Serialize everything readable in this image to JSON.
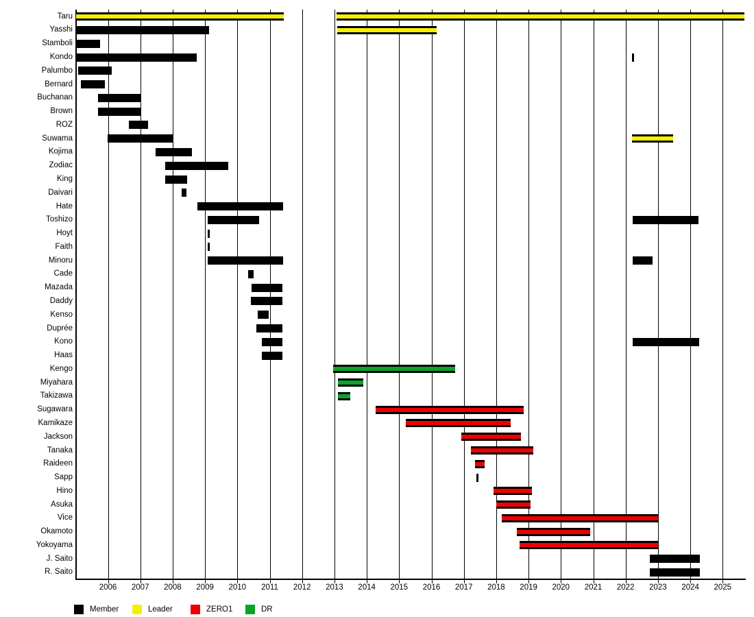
{
  "chart_data": {
    "type": "gantt-timeline",
    "title": "",
    "x_axis": {
      "start": 2005.02,
      "end": 2025.72,
      "tick_years": [
        2006,
        2007,
        2008,
        2009,
        2010,
        2011,
        2012,
        2013,
        2014,
        2015,
        2016,
        2017,
        2018,
        2019,
        2020,
        2021,
        2022,
        2023,
        2024,
        2025
      ],
      "grid": "on"
    },
    "legend": [
      {
        "label": "Member",
        "key": "Member",
        "color": "#000000"
      },
      {
        "label": "Leader",
        "key": "Leader",
        "color": "#f7ef00"
      },
      {
        "label": "ZERO1",
        "key": "ZERO1",
        "color": "#ee0000"
      },
      {
        "label": "DR",
        "key": "DR",
        "color": "#0ba428"
      }
    ],
    "rows": [
      {
        "label": "Taru",
        "bars": [
          {
            "start": 2005.02,
            "end": 2011.44,
            "type": "Leader"
          },
          {
            "start": 2013.07,
            "end": 2025.68,
            "type": "Leader"
          }
        ]
      },
      {
        "label": "Yasshi",
        "bars": [
          {
            "start": 2005.02,
            "end": 2009.12,
            "type": "Member"
          },
          {
            "start": 2013.09,
            "end": 2016.15,
            "type": "Leader"
          }
        ]
      },
      {
        "label": "Stamboli",
        "bars": [
          {
            "start": 2005.02,
            "end": 2005.76,
            "type": "Member"
          }
        ]
      },
      {
        "label": "Kondo",
        "bars": [
          {
            "start": 2005.02,
            "end": 2008.74,
            "type": "Member"
          },
          {
            "start": 2022.2,
            "end": 2022.2,
            "type": "Member"
          }
        ]
      },
      {
        "label": "Palumbo",
        "bars": [
          {
            "start": 2005.08,
            "end": 2006.11,
            "type": "Member"
          }
        ]
      },
      {
        "label": "Bernard",
        "bars": [
          {
            "start": 2005.17,
            "end": 2005.91,
            "type": "Member"
          }
        ]
      },
      {
        "label": "Buchanan",
        "bars": [
          {
            "start": 2005.69,
            "end": 2007.02,
            "type": "Member"
          }
        ]
      },
      {
        "label": "Brown",
        "bars": [
          {
            "start": 2005.69,
            "end": 2007.02,
            "type": "Member"
          }
        ]
      },
      {
        "label": "ROZ",
        "bars": [
          {
            "start": 2006.64,
            "end": 2007.24,
            "type": "Member"
          }
        ]
      },
      {
        "label": "Suwama",
        "bars": [
          {
            "start": 2005.98,
            "end": 2008.0,
            "type": "Member"
          },
          {
            "start": 2022.19,
            "end": 2023.47,
            "type": "Leader"
          }
        ]
      },
      {
        "label": "Kojima",
        "bars": [
          {
            "start": 2007.48,
            "end": 2008.6,
            "type": "Member"
          }
        ]
      },
      {
        "label": "Zodiac",
        "bars": [
          {
            "start": 2007.77,
            "end": 2009.71,
            "type": "Member"
          }
        ]
      },
      {
        "label": "King",
        "bars": [
          {
            "start": 2007.77,
            "end": 2008.45,
            "type": "Member"
          }
        ]
      },
      {
        "label": "Daivari",
        "bars": [
          {
            "start": 2008.28,
            "end": 2008.42,
            "type": "Member"
          }
        ]
      },
      {
        "label": "Hate",
        "bars": [
          {
            "start": 2008.76,
            "end": 2011.41,
            "type": "Member"
          }
        ]
      },
      {
        "label": "Toshizo",
        "bars": [
          {
            "start": 2009.08,
            "end": 2010.67,
            "type": "Member"
          },
          {
            "start": 2022.21,
            "end": 2024.26,
            "type": "Member"
          }
        ]
      },
      {
        "label": "Hoyt",
        "bars": [
          {
            "start": 2009.09,
            "end": 2009.09,
            "type": "Member"
          }
        ]
      },
      {
        "label": "Faith",
        "bars": [
          {
            "start": 2009.09,
            "end": 2009.09,
            "type": "Member"
          }
        ]
      },
      {
        "label": "Minoru",
        "bars": [
          {
            "start": 2009.09,
            "end": 2011.41,
            "type": "Member"
          },
          {
            "start": 2022.21,
            "end": 2022.84,
            "type": "Member"
          }
        ]
      },
      {
        "label": "Cade",
        "bars": [
          {
            "start": 2010.33,
            "end": 2010.5,
            "type": "Member"
          }
        ]
      },
      {
        "label": "Mazada",
        "bars": [
          {
            "start": 2010.43,
            "end": 2011.39,
            "type": "Member"
          }
        ]
      },
      {
        "label": "Daddy",
        "bars": [
          {
            "start": 2010.42,
            "end": 2011.39,
            "type": "Member"
          }
        ]
      },
      {
        "label": "Kenso",
        "bars": [
          {
            "start": 2010.63,
            "end": 2010.96,
            "type": "Member"
          }
        ]
      },
      {
        "label": "Duprée",
        "bars": [
          {
            "start": 2010.59,
            "end": 2011.39,
            "type": "Member"
          }
        ]
      },
      {
        "label": "Kono",
        "bars": [
          {
            "start": 2010.75,
            "end": 2011.39,
            "type": "Member"
          },
          {
            "start": 2022.21,
            "end": 2024.28,
            "type": "Member"
          }
        ]
      },
      {
        "label": "Haas",
        "bars": [
          {
            "start": 2010.75,
            "end": 2011.39,
            "type": "Member"
          }
        ]
      },
      {
        "label": "Kengo",
        "bars": [
          {
            "start": 2012.95,
            "end": 2016.73,
            "type": "DR"
          }
        ]
      },
      {
        "label": "Miyahara",
        "bars": [
          {
            "start": 2013.11,
            "end": 2013.89,
            "type": "DR"
          }
        ]
      },
      {
        "label": "Takizawa",
        "bars": [
          {
            "start": 2013.11,
            "end": 2013.49,
            "type": "DR"
          }
        ]
      },
      {
        "label": "Sugawara",
        "bars": [
          {
            "start": 2014.27,
            "end": 2018.85,
            "type": "ZERO1"
          }
        ]
      },
      {
        "label": "Kamikaze",
        "bars": [
          {
            "start": 2015.2,
            "end": 2018.44,
            "type": "ZERO1"
          }
        ]
      },
      {
        "label": "Jackson",
        "bars": [
          {
            "start": 2016.92,
            "end": 2018.77,
            "type": "ZERO1"
          }
        ]
      },
      {
        "label": "Tanaka",
        "bars": [
          {
            "start": 2017.22,
            "end": 2019.15,
            "type": "ZERO1"
          }
        ]
      },
      {
        "label": "Raideen",
        "bars": [
          {
            "start": 2017.35,
            "end": 2017.64,
            "type": "ZERO1"
          }
        ]
      },
      {
        "label": "Sapp",
        "bars": [
          {
            "start": 2017.39,
            "end": 2017.39,
            "type": "Member"
          }
        ]
      },
      {
        "label": "Hino",
        "bars": [
          {
            "start": 2017.91,
            "end": 2019.11,
            "type": "ZERO1"
          }
        ]
      },
      {
        "label": "Asuka",
        "bars": [
          {
            "start": 2018.0,
            "end": 2019.06,
            "type": "ZERO1"
          }
        ]
      },
      {
        "label": "Vice",
        "bars": [
          {
            "start": 2018.17,
            "end": 2023.0,
            "type": "ZERO1"
          }
        ]
      },
      {
        "label": "Okamoto",
        "bars": [
          {
            "start": 2018.64,
            "end": 2020.91,
            "type": "ZERO1"
          }
        ]
      },
      {
        "label": "Yokoyama",
        "bars": [
          {
            "start": 2018.73,
            "end": 2023.0,
            "type": "ZERO1"
          }
        ]
      },
      {
        "label": "J. Saito",
        "bars": [
          {
            "start": 2022.75,
            "end": 2024.29,
            "type": "Member"
          }
        ]
      },
      {
        "label": "R. Saito",
        "bars": [
          {
            "start": 2022.75,
            "end": 2024.29,
            "type": "Member"
          }
        ]
      }
    ]
  },
  "colors": {
    "member": "#000000",
    "leader": "#f7ef00",
    "zero1": "#ee0000",
    "dr": "#0ba428",
    "grid": "#000000",
    "background": "#ffffff"
  }
}
